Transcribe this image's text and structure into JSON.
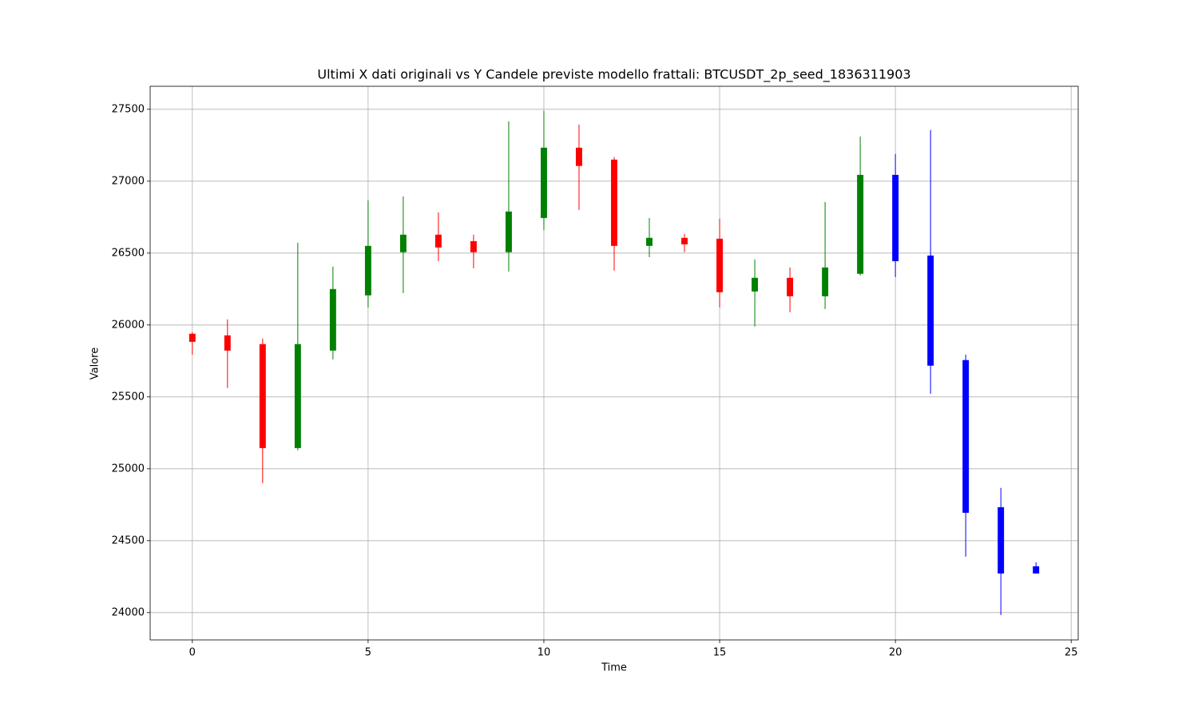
{
  "chart_data": {
    "type": "candlestick",
    "title": "Ultimi X dati originali vs Y Candele previste modello frattali: BTCUSDT_2p_seed_1836311903",
    "x_label": "Time",
    "y_label": "Valore",
    "x": [
      0,
      1,
      2,
      3,
      4,
      5,
      6,
      7,
      8,
      9,
      10,
      11,
      12,
      13,
      14,
      15,
      16,
      17,
      18,
      19,
      20,
      21,
      22,
      23,
      24
    ],
    "open": [
      25939,
      25928,
      25867,
      25144,
      25822,
      26206,
      26506,
      26628,
      26583,
      26506,
      26744,
      27233,
      27150,
      26550,
      26606,
      26600,
      26233,
      26328,
      26200,
      26356,
      27044,
      26483,
      25756,
      24733,
      24322
    ],
    "high": [
      25950,
      26039,
      25905,
      26572,
      26406,
      26867,
      26894,
      26783,
      26628,
      27417,
      27489,
      27394,
      27167,
      26744,
      26633,
      26739,
      26456,
      26400,
      26856,
      27311,
      27189,
      27356,
      25794,
      24867,
      24350
    ],
    "low": [
      25794,
      25561,
      24900,
      25128,
      25761,
      26122,
      26222,
      26444,
      26394,
      26372,
      26661,
      26800,
      26378,
      26472,
      26506,
      26122,
      25989,
      26089,
      26111,
      26344,
      26333,
      25522,
      24389,
      23983,
      24272
    ],
    "close": [
      25883,
      25822,
      25144,
      25867,
      26250,
      26550,
      26628,
      26539,
      26506,
      26789,
      27233,
      27106,
      26550,
      26606,
      26561,
      26228,
      26328,
      26200,
      26400,
      27044,
      26444,
      25717,
      24694,
      24272,
      24272
    ],
    "colors": [
      "red",
      "red",
      "red",
      "green",
      "green",
      "green",
      "green",
      "red",
      "red",
      "green",
      "green",
      "red",
      "red",
      "green",
      "red",
      "red",
      "green",
      "red",
      "green",
      "green",
      "blue",
      "blue",
      "blue",
      "blue",
      "blue"
    ],
    "xlim": [
      -1.2,
      25.2
    ],
    "ylim": [
      23810,
      27660
    ],
    "xticks": [
      0,
      5,
      10,
      15,
      20,
      25
    ],
    "yticks": [
      24000,
      24500,
      25000,
      25500,
      26000,
      26500,
      27000,
      27500
    ],
    "grid": true
  }
}
